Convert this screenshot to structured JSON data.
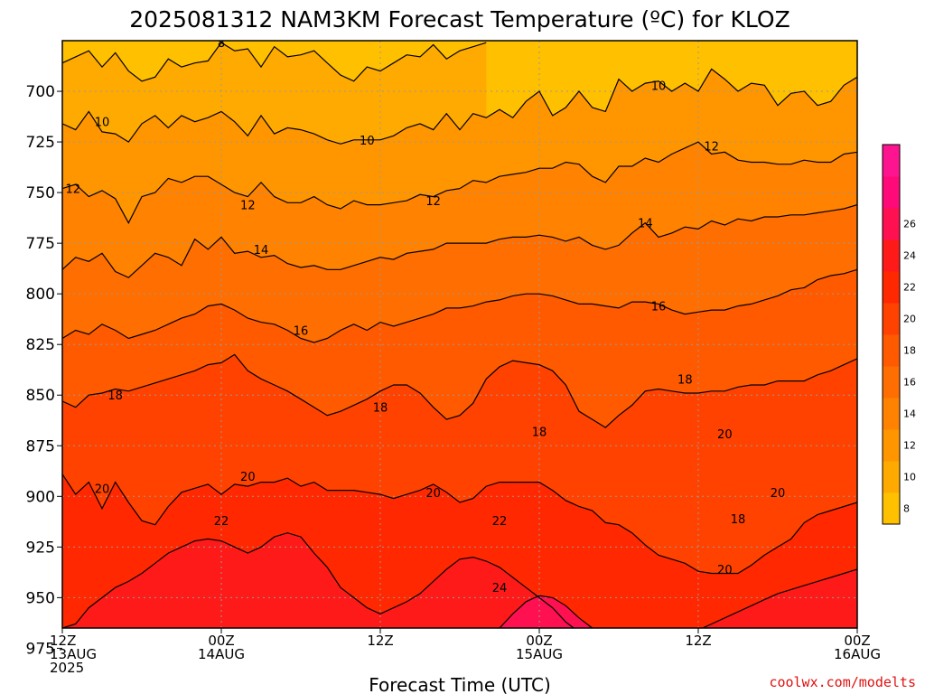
{
  "title": "2025081312 NAM3KM Forecast Temperature (ºC) for KLOZ",
  "credit": "coolwx.com/modelts",
  "colors": {
    "bands": [
      "#ffc000",
      "#ffaa00",
      "#ff9600",
      "#ff8200",
      "#ff6e00",
      "#ff5a00",
      "#ff4200",
      "#ff2800",
      "#ff1a1a",
      "#ff1050",
      "#ff0a78",
      "#ff1490"
    ],
    "ground": "#a0522d",
    "contour": "#000000",
    "grid": "#999999",
    "credit": "#e01010"
  },
  "chart_data": {
    "type": "heatmap",
    "title": "2025081312 NAM3KM Forecast Temperature (ºC) for KLOZ",
    "xlabel": "Forecast Time (UTC)",
    "ylabel": "",
    "x_unit": "forecast hour",
    "xlim": [
      0,
      60
    ],
    "ylim": [
      965,
      675
    ],
    "x_ticks": [
      {
        "hour": 0,
        "lines": [
          "12Z",
          "13AUG",
          "2025"
        ]
      },
      {
        "hour": 12,
        "lines": [
          "00Z",
          "14AUG"
        ]
      },
      {
        "hour": 24,
        "lines": [
          "12Z"
        ]
      },
      {
        "hour": 36,
        "lines": [
          "00Z",
          "15AUG"
        ]
      },
      {
        "hour": 48,
        "lines": [
          "12Z"
        ]
      },
      {
        "hour": 60,
        "lines": [
          "00Z",
          "16AUG"
        ]
      }
    ],
    "y_ticks": [
      700,
      725,
      750,
      775,
      800,
      825,
      850,
      875,
      900,
      925,
      950,
      975
    ],
    "colorbar": {
      "levels": [
        6,
        8,
        10,
        12,
        14,
        16,
        18,
        20,
        22,
        24,
        26,
        28
      ],
      "tick_labels": [
        "8",
        "10",
        "12",
        "14",
        "16",
        "18",
        "20",
        "22",
        "24",
        "26"
      ]
    },
    "contours": [
      {
        "value": 8,
        "x": [
          0,
          1,
          2,
          3,
          4,
          5,
          6,
          7,
          8,
          9,
          10,
          11,
          12,
          13,
          14,
          15,
          16,
          17,
          18,
          19,
          20,
          21,
          22,
          23,
          24,
          25,
          26,
          27,
          28,
          29,
          30,
          31,
          32
        ],
        "p": [
          686,
          683,
          680,
          688,
          681,
          690,
          695,
          693,
          684,
          688,
          686,
          685,
          676,
          680,
          679,
          688,
          678,
          683,
          682,
          680,
          686,
          692,
          695,
          688,
          690,
          686,
          682,
          683,
          677,
          684,
          680,
          678,
          676
        ]
      },
      {
        "value": 10,
        "x": [
          0,
          1,
          2,
          3,
          4,
          5,
          6,
          7,
          8,
          9,
          10,
          11,
          12,
          13,
          14,
          15,
          16,
          17,
          18,
          19,
          20,
          21,
          22,
          23,
          24,
          25,
          26,
          27,
          28,
          29,
          30,
          31,
          32,
          33,
          34,
          35,
          36,
          37,
          38,
          39,
          40,
          41,
          42,
          43,
          44,
          45,
          46,
          47,
          48,
          49,
          50,
          51,
          52,
          53,
          54,
          55,
          56,
          57,
          58,
          59,
          60
        ],
        "p": [
          716,
          719,
          710,
          720,
          721,
          725,
          716,
          712,
          718,
          712,
          715,
          713,
          710,
          715,
          722,
          712,
          721,
          718,
          719,
          721,
          724,
          726,
          724,
          724,
          724,
          722,
          718,
          716,
          719,
          711,
          719,
          711,
          713,
          709,
          713,
          705,
          700,
          712,
          708,
          700,
          708,
          710,
          694,
          700,
          696,
          695,
          700,
          696,
          700,
          689,
          694,
          700,
          696,
          697,
          707,
          701,
          700,
          707,
          705,
          697,
          693
        ]
      },
      {
        "value": 12,
        "x": [
          0,
          1,
          2,
          3,
          4,
          5,
          6,
          7,
          8,
          9,
          10,
          11,
          12,
          13,
          14,
          15,
          16,
          17,
          18,
          19,
          20,
          21,
          22,
          23,
          24,
          25,
          26,
          27,
          28,
          29,
          30,
          31,
          32,
          33,
          34,
          35,
          36,
          37,
          38,
          39,
          40,
          41,
          42,
          43,
          44,
          45,
          46,
          47,
          48,
          49,
          50,
          51,
          52,
          53,
          54,
          55,
          56,
          57,
          58,
          59,
          60
        ],
        "p": [
          748,
          746,
          752,
          749,
          753,
          765,
          752,
          750,
          743,
          745,
          742,
          742,
          746,
          750,
          752,
          745,
          752,
          755,
          755,
          752,
          756,
          758,
          754,
          756,
          756,
          755,
          754,
          751,
          752,
          749,
          748,
          744,
          745,
          742,
          741,
          740,
          738,
          738,
          735,
          736,
          742,
          745,
          737,
          737,
          733,
          735,
          731,
          728,
          725,
          731,
          730,
          734,
          735,
          735,
          736,
          736,
          734,
          735,
          735,
          731,
          730
        ]
      },
      {
        "value": 14,
        "x": [
          0,
          1,
          2,
          3,
          4,
          5,
          6,
          7,
          8,
          9,
          10,
          11,
          12,
          13,
          14,
          15,
          16,
          17,
          18,
          19,
          20,
          21,
          22,
          23,
          24,
          25,
          26,
          27,
          28,
          29,
          30,
          31,
          32,
          33,
          34,
          35,
          36,
          37,
          38,
          39,
          40,
          41,
          42,
          43,
          44,
          45,
          46,
          47,
          48,
          49,
          50,
          51,
          52,
          53,
          54,
          55,
          56,
          57,
          58,
          59,
          60
        ],
        "p": [
          788,
          782,
          784,
          780,
          789,
          792,
          786,
          780,
          782,
          786,
          773,
          778,
          772,
          780,
          779,
          782,
          781,
          785,
          787,
          786,
          788,
          788,
          786,
          784,
          782,
          783,
          780,
          779,
          778,
          775,
          775,
          775,
          775,
          773,
          772,
          772,
          771,
          772,
          774,
          772,
          776,
          778,
          776,
          770,
          765,
          772,
          770,
          767,
          768,
          764,
          766,
          763,
          764,
          762,
          762,
          761,
          761,
          760,
          759,
          758,
          756
        ]
      },
      {
        "value": 16,
        "x": [
          0,
          1,
          2,
          3,
          4,
          5,
          6,
          7,
          8,
          9,
          10,
          11,
          12,
          13,
          14,
          15,
          16,
          17,
          18,
          19,
          20,
          21,
          22,
          23,
          24,
          25,
          26,
          27,
          28,
          29,
          30,
          31,
          32,
          33,
          34,
          35,
          36,
          37,
          38,
          39,
          40,
          41,
          42,
          43,
          44,
          45,
          46,
          47,
          48,
          49,
          50,
          51,
          52,
          53,
          54,
          55,
          56,
          57,
          58,
          59,
          60
        ],
        "p": [
          822,
          818,
          820,
          815,
          818,
          822,
          820,
          818,
          815,
          812,
          810,
          806,
          805,
          808,
          812,
          814,
          815,
          818,
          822,
          824,
          822,
          818,
          815,
          818,
          814,
          816,
          814,
          812,
          810,
          807,
          807,
          806,
          804,
          803,
          801,
          800,
          800,
          801,
          803,
          805,
          805,
          806,
          807,
          804,
          804,
          805,
          808,
          810,
          809,
          808,
          808,
          806,
          805,
          803,
          801,
          798,
          797,
          793,
          791,
          790,
          788
        ]
      },
      {
        "value": 18,
        "x": [
          0,
          1,
          2,
          3,
          4,
          5,
          6,
          7,
          8,
          9,
          10,
          11,
          12,
          13,
          14,
          15,
          16,
          17,
          18,
          19,
          20,
          21,
          22,
          23,
          24,
          25,
          26,
          27,
          28,
          29,
          30,
          31,
          32,
          33,
          34,
          35,
          36,
          37,
          38,
          39,
          40,
          41,
          42,
          43,
          44,
          45,
          46,
          47,
          48,
          49,
          50,
          51,
          52,
          53,
          54,
          55,
          56,
          57,
          58,
          59,
          60
        ],
        "p": [
          853,
          856,
          850,
          849,
          847,
          848,
          846,
          844,
          842,
          840,
          838,
          835,
          834,
          830,
          838,
          842,
          845,
          848,
          852,
          856,
          860,
          858,
          855,
          852,
          848,
          845,
          845,
          849,
          856,
          862,
          860,
          854,
          842,
          836,
          833,
          834,
          835,
          838,
          845,
          858,
          862,
          866,
          860,
          855,
          848,
          847,
          848,
          849,
          849,
          848,
          848,
          846,
          845,
          845,
          843,
          843,
          843,
          840,
          838,
          835,
          832
        ]
      },
      {
        "value": 20,
        "x": [
          0,
          1,
          2,
          3,
          4,
          5,
          6,
          7,
          8,
          9,
          10,
          11,
          12,
          13,
          14,
          15,
          16,
          17,
          18,
          19,
          20,
          21,
          22,
          23,
          24,
          25,
          26,
          27,
          28,
          29,
          30,
          31,
          32,
          33,
          34,
          35,
          36,
          37,
          38,
          39,
          40,
          41,
          42,
          43,
          44,
          45,
          46,
          47,
          48,
          49,
          50,
          51,
          52,
          53,
          54,
          55,
          56,
          57,
          58,
          59,
          60
        ],
        "p": [
          889,
          899,
          893,
          906,
          893,
          903,
          912,
          914,
          905,
          898,
          896,
          894,
          899,
          894,
          895,
          893,
          893,
          891,
          895,
          893,
          897,
          897,
          897,
          898,
          899,
          901,
          899,
          897,
          894,
          898,
          903,
          901,
          895,
          893,
          893,
          893,
          893,
          897,
          902,
          905,
          907,
          913,
          914,
          918,
          924,
          929,
          931,
          933,
          937,
          938,
          938,
          938,
          934,
          929,
          925,
          921,
          913,
          909,
          907,
          905,
          903
        ]
      },
      {
        "value": 22,
        "x": [
          0,
          1,
          2,
          3,
          4,
          5,
          6,
          7,
          8,
          9,
          10,
          11,
          12,
          13,
          14,
          15,
          16,
          17,
          18,
          19,
          20,
          21,
          22,
          23,
          24,
          25,
          26,
          27,
          28,
          29,
          30,
          31,
          32,
          33,
          34,
          35,
          36,
          37,
          38,
          39,
          40,
          41,
          42,
          43,
          44,
          45,
          46,
          47,
          48,
          49,
          50,
          51,
          52,
          53,
          54,
          55,
          56,
          57,
          58,
          59,
          60
        ],
        "p": [
          965,
          963,
          955,
          950,
          945,
          942,
          938,
          933,
          928,
          925,
          922,
          921,
          922,
          925,
          928,
          925,
          920,
          918,
          920,
          928,
          935,
          945,
          950,
          955,
          958,
          955,
          952,
          948,
          942,
          936,
          931,
          930,
          932,
          935,
          940,
          945,
          950,
          955,
          962,
          967,
          970,
          971,
          971,
          971,
          971,
          970,
          969,
          968,
          966,
          963,
          960,
          957,
          954,
          951,
          948,
          946,
          944,
          942,
          940,
          938,
          936
        ]
      },
      {
        "value": 24,
        "x": [
          33,
          34,
          35,
          36,
          37,
          38,
          39,
          40,
          41
        ],
        "p": [
          965,
          958,
          952,
          949,
          950,
          954,
          960,
          965,
          968
        ]
      }
    ],
    "contour_labels": [
      {
        "value": 8,
        "hour": 12,
        "p": 676
      },
      {
        "value": 10,
        "hour": 3,
        "p": 715
      },
      {
        "value": 10,
        "hour": 23,
        "p": 724
      },
      {
        "value": 10,
        "hour": 45,
        "p": 697
      },
      {
        "value": 12,
        "hour": 0.8,
        "p": 748
      },
      {
        "value": 12,
        "hour": 14,
        "p": 756
      },
      {
        "value": 12,
        "hour": 28,
        "p": 754
      },
      {
        "value": 12,
        "hour": 49,
        "p": 727
      },
      {
        "value": 14,
        "hour": 15,
        "p": 778
      },
      {
        "value": 14,
        "hour": 44,
        "p": 765
      },
      {
        "value": 16,
        "hour": 18,
        "p": 818
      },
      {
        "value": 16,
        "hour": 45,
        "p": 806
      },
      {
        "value": 18,
        "hour": 4,
        "p": 850
      },
      {
        "value": 18,
        "hour": 24,
        "p": 856
      },
      {
        "value": 18,
        "hour": 36,
        "p": 868
      },
      {
        "value": 18,
        "hour": 47,
        "p": 842
      },
      {
        "value": 18,
        "hour": 51,
        "p": 911
      },
      {
        "value": 20,
        "hour": 3,
        "p": 896
      },
      {
        "value": 20,
        "hour": 14,
        "p": 890
      },
      {
        "value": 20,
        "hour": 28,
        "p": 898
      },
      {
        "value": 20,
        "hour": 50,
        "p": 869
      },
      {
        "value": 20,
        "hour": 50,
        "p": 936
      },
      {
        "value": 20,
        "hour": 54,
        "p": 898
      },
      {
        "value": 22,
        "hour": 12,
        "p": 912
      },
      {
        "value": 22,
        "hour": 33,
        "p": 912
      },
      {
        "value": 24,
        "hour": 33,
        "p": 945
      }
    ],
    "surface_pressure": 968
  }
}
